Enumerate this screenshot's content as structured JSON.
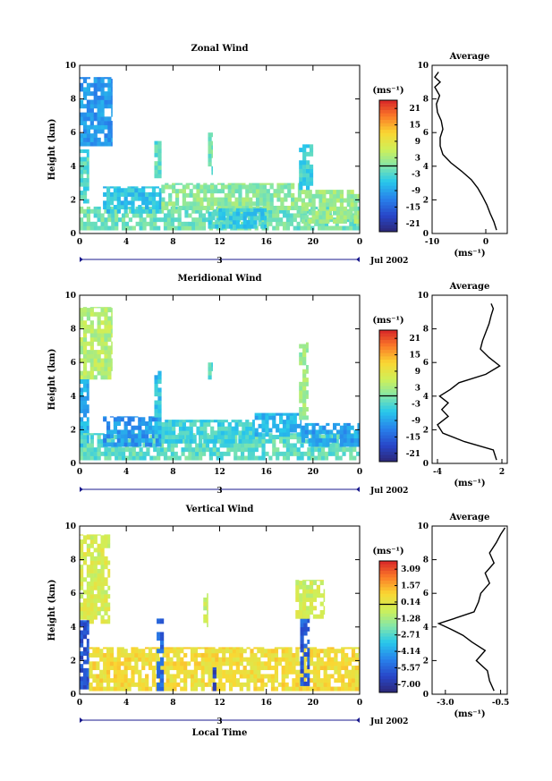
{
  "chart_data": [
    {
      "type": "heatmap",
      "title": "Zonal Wind",
      "ylabel": "Height (km)",
      "xlabel": "",
      "xlim": [
        0,
        24
      ],
      "ylim": [
        0,
        10
      ],
      "xticks": [
        "0",
        "4",
        "8",
        "12",
        "16",
        "20",
        "0"
      ],
      "yticks": [
        "0",
        "2",
        "4",
        "6",
        "8",
        "10"
      ],
      "date_label": "Jul 2002",
      "day_marker": "3",
      "colorbar": {
        "unit": "(ms⁻¹)",
        "labels": [
          "21",
          "15",
          "9",
          "3",
          "-3",
          "-9",
          "-15",
          "-21"
        ],
        "range": [
          -24,
          24
        ]
      },
      "regions": [
        {
          "x0": 0.0,
          "x1": 2.8,
          "y0": 5.2,
          "y1": 9.3,
          "value": -10
        },
        {
          "x0": 0.0,
          "x1": 0.8,
          "y0": 1.8,
          "y1": 5.0,
          "value": -3
        },
        {
          "x0": 0.0,
          "x1": 24.0,
          "y0": 0.2,
          "y1": 1.6,
          "value": -1
        },
        {
          "x0": 2.0,
          "x1": 7.0,
          "y0": 1.2,
          "y1": 2.8,
          "value": -6
        },
        {
          "x0": 7.0,
          "x1": 19.0,
          "y0": 1.4,
          "y1": 3.0,
          "value": 1
        },
        {
          "x0": 11.0,
          "x1": 16.0,
          "y0": 0.3,
          "y1": 1.5,
          "value": -5
        },
        {
          "x0": 19.0,
          "x1": 24.0,
          "y0": 0.6,
          "y1": 2.6,
          "value": 2
        },
        {
          "x0": 18.8,
          "x1": 20.0,
          "y0": 2.6,
          "y1": 5.3,
          "value": -4
        },
        {
          "x0": 6.4,
          "x1": 7.0,
          "y0": 3.3,
          "y1": 5.5,
          "value": -2
        },
        {
          "x0": 11.0,
          "x1": 11.4,
          "y0": 3.5,
          "y1": 6.0,
          "value": -1
        }
      ],
      "average_profile": {
        "title": "Average",
        "xlabel": "(ms⁻¹)",
        "xlim": [
          -10,
          4
        ],
        "xticks": [
          "-10",
          "0"
        ],
        "ylim": [
          0,
          10
        ],
        "yticks": [
          "0",
          "2",
          "4",
          "6",
          "8",
          "10"
        ],
        "x": [
          2,
          1.5,
          0.8,
          0.2,
          -0.6,
          -1.5,
          -2.7,
          -4.5,
          -6.5,
          -8,
          -8.5,
          -8.5,
          -8,
          -8.3,
          -9,
          -9.2,
          -8.6,
          -9.5,
          -8.5,
          -9.5,
          -8.8
        ],
        "y": [
          0.2,
          0.7,
          1.2,
          1.7,
          2.2,
          2.7,
          3.2,
          3.7,
          4.2,
          4.7,
          5.2,
          5.7,
          6.2,
          6.7,
          7.2,
          7.7,
          8.2,
          8.7,
          9.0,
          9.3,
          9.6
        ]
      }
    },
    {
      "type": "heatmap",
      "title": "Meridional Wind",
      "ylabel": "Height (km)",
      "xlabel": "",
      "xlim": [
        0,
        24
      ],
      "ylim": [
        0,
        10
      ],
      "xticks": [
        "0",
        "4",
        "8",
        "12",
        "16",
        "20",
        "0"
      ],
      "yticks": [
        "0",
        "2",
        "4",
        "6",
        "8",
        "10"
      ],
      "date_label": "Jul 2002",
      "day_marker": "3",
      "colorbar": {
        "unit": "(ms⁻¹)",
        "labels": [
          "21",
          "15",
          "9",
          "3",
          "-3",
          "-9",
          "-15",
          "-21"
        ],
        "range": [
          -24,
          24
        ]
      },
      "regions": [
        {
          "x0": 0.0,
          "x1": 2.8,
          "y0": 5.0,
          "y1": 9.3,
          "value": 4
        },
        {
          "x0": 0.0,
          "x1": 0.8,
          "y0": 0.5,
          "y1": 5.0,
          "value": -8
        },
        {
          "x0": 0.0,
          "x1": 24.0,
          "y0": 0.2,
          "y1": 1.8,
          "value": -2
        },
        {
          "x0": 2.0,
          "x1": 7.0,
          "y0": 1.0,
          "y1": 2.8,
          "value": -10
        },
        {
          "x0": 7.0,
          "x1": 15.0,
          "y0": 1.2,
          "y1": 2.6,
          "value": -4
        },
        {
          "x0": 15.0,
          "x1": 19.0,
          "y0": 1.6,
          "y1": 3.0,
          "value": -7
        },
        {
          "x0": 19.0,
          "x1": 24.0,
          "y0": 1.0,
          "y1": 2.4,
          "value": -9
        },
        {
          "x0": 18.8,
          "x1": 19.6,
          "y0": 2.6,
          "y1": 7.2,
          "value": 2
        },
        {
          "x0": 6.4,
          "x1": 7.0,
          "y0": 1.5,
          "y1": 5.5,
          "value": -6
        },
        {
          "x0": 11.0,
          "x1": 11.4,
          "y0": 5.0,
          "y1": 6.0,
          "value": -2
        }
      ],
      "average_profile": {
        "title": "Average",
        "xlabel": "(ms⁻¹)",
        "xlim": [
          -4.5,
          2.5
        ],
        "xticks": [
          "-4",
          "2"
        ],
        "ylim": [
          0,
          10
        ],
        "yticks": [
          "0",
          "2",
          "4",
          "6",
          "8",
          "10"
        ],
        "x": [
          1.5,
          1.2,
          -1.5,
          -3.5,
          -4.0,
          -3.0,
          -3.6,
          -3.0,
          -3.8,
          -2.8,
          -2.0,
          0.5,
          1.8,
          0.8,
          0.0,
          0.2,
          0.5,
          0.8,
          1.0,
          1.2,
          1.0
        ],
        "y": [
          0.2,
          0.8,
          1.3,
          1.8,
          2.3,
          2.8,
          3.2,
          3.6,
          4.0,
          4.4,
          4.8,
          5.3,
          5.8,
          6.3,
          6.8,
          7.3,
          7.8,
          8.3,
          8.8,
          9.2,
          9.5
        ]
      }
    },
    {
      "type": "heatmap",
      "title": "Vertical Wind",
      "ylabel": "Height (km)",
      "xlabel": "Local Time",
      "xlim": [
        0,
        24
      ],
      "ylim": [
        0,
        10
      ],
      "xticks": [
        "0",
        "4",
        "8",
        "12",
        "16",
        "20",
        "0"
      ],
      "yticks": [
        "0",
        "2",
        "4",
        "6",
        "8",
        "10"
      ],
      "date_label": "Jul 2002",
      "day_marker": "3",
      "colorbar": {
        "unit": "(ms⁻¹)",
        "labels": [
          "3.09",
          "1.57",
          "0.14",
          "-1.28",
          "-2.71",
          "-4.14",
          "-5.57",
          "-7.00"
        ],
        "range": [
          -7.72,
          3.8
        ]
      },
      "regions": [
        {
          "x0": 0.0,
          "x1": 2.6,
          "y0": 4.2,
          "y1": 9.5,
          "value": -0.3
        },
        {
          "x0": 0.0,
          "x1": 0.8,
          "y0": 0.3,
          "y1": 4.4,
          "value": -6.0
        },
        {
          "x0": 0.8,
          "x1": 24.0,
          "y0": 0.2,
          "y1": 2.8,
          "value": 0.6
        },
        {
          "x0": 6.6,
          "x1": 7.2,
          "y0": 0.2,
          "y1": 4.5,
          "value": -5.5
        },
        {
          "x0": 11.4,
          "x1": 11.7,
          "y0": 0.2,
          "y1": 1.6,
          "value": -6.5
        },
        {
          "x0": 18.9,
          "x1": 19.7,
          "y0": 0.5,
          "y1": 5.0,
          "value": -5.8
        },
        {
          "x0": 18.5,
          "x1": 21.0,
          "y0": 4.5,
          "y1": 6.8,
          "value": -0.4
        },
        {
          "x0": 10.6,
          "x1": 11.0,
          "y0": 4.0,
          "y1": 6.0,
          "value": -0.5
        }
      ],
      "average_profile": {
        "title": "Average",
        "xlabel": "(ms⁻¹)",
        "xlim": [
          -3.6,
          -0.2
        ],
        "xticks": [
          "-3.0",
          "-0.5"
        ],
        "ylim": [
          0,
          10
        ],
        "yticks": [
          "0",
          "2",
          "4",
          "6",
          "8",
          "10"
        ],
        "x": [
          -0.8,
          -1.0,
          -1.1,
          -1.6,
          -1.2,
          -1.8,
          -2.2,
          -2.8,
          -3.3,
          -2.6,
          -1.7,
          -1.5,
          -1.4,
          -1.0,
          -1.2,
          -0.8,
          -1.0,
          -0.7,
          -0.5,
          -0.3
        ],
        "y": [
          0.2,
          0.8,
          1.4,
          2.0,
          2.6,
          3.1,
          3.5,
          3.9,
          4.2,
          4.5,
          4.9,
          5.5,
          6.0,
          6.6,
          7.2,
          7.8,
          8.4,
          9.0,
          9.5,
          9.9
        ]
      }
    }
  ]
}
